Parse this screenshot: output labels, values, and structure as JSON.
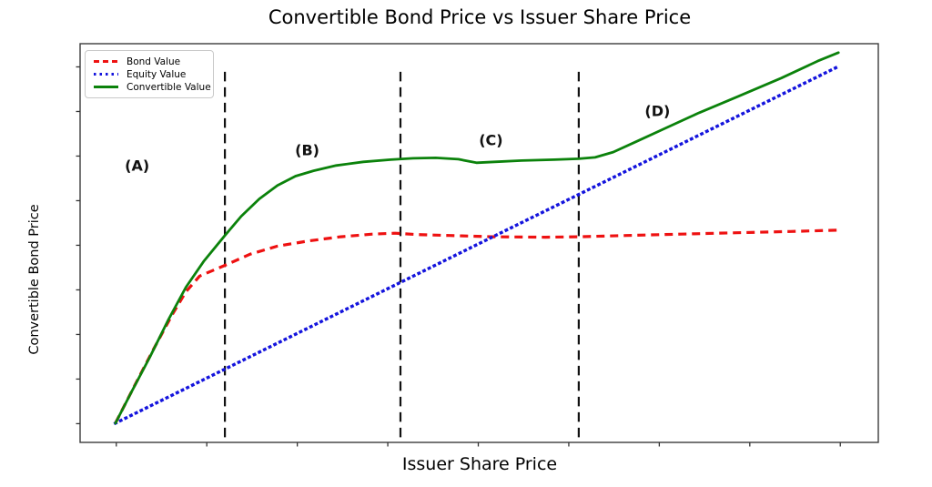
{
  "title": "Convertible Bond Price vs Issuer Share Price",
  "chart_data": {
    "type": "line",
    "title": "Convertible Bond Price vs Issuer Share Price",
    "xlabel": "Issuer Share Price",
    "ylabel": "Convertible Bond Price",
    "xlim": [
      0.6,
      9.42
    ],
    "ylim": [
      0.58,
      9.52
    ],
    "x_ticks": [
      1,
      2,
      3,
      4,
      5,
      6,
      7,
      8,
      9
    ],
    "y_ticks": [
      1,
      2,
      3,
      4,
      5,
      6,
      7,
      8,
      9
    ],
    "tick_labels_shown": false,
    "grid": false,
    "frame_color": "#3c3c3c",
    "legend_position": "upper-left",
    "boundary_lines": {
      "color": "#111111",
      "style": "dashed",
      "x_values": [
        2.2,
        4.14,
        6.11
      ],
      "y_span": [
        0.58,
        8.89
      ]
    },
    "region_labels": [
      {
        "text": "(A)",
        "x": 1.23,
        "y": 6.79
      },
      {
        "text": "(B)",
        "x": 3.11,
        "y": 7.14
      },
      {
        "text": "(C)",
        "x": 5.14,
        "y": 7.36
      },
      {
        "text": "(D)",
        "x": 6.98,
        "y": 8.01
      }
    ],
    "series": [
      {
        "name": "Bond Value",
        "color": "#ee1111",
        "style": "dashed",
        "points": [
          [
            0.99,
            1.01
          ],
          [
            1.22,
            1.92
          ],
          [
            1.42,
            2.7
          ],
          [
            1.62,
            3.45
          ],
          [
            1.77,
            3.96
          ],
          [
            1.92,
            4.31
          ],
          [
            2.2,
            4.55
          ],
          [
            2.48,
            4.8
          ],
          [
            2.78,
            4.98
          ],
          [
            3.13,
            5.1
          ],
          [
            3.48,
            5.19
          ],
          [
            3.83,
            5.25
          ],
          [
            4.08,
            5.27
          ],
          [
            4.33,
            5.24
          ],
          [
            4.68,
            5.22
          ],
          [
            5.16,
            5.19
          ],
          [
            5.74,
            5.18
          ],
          [
            6.11,
            5.19
          ],
          [
            6.64,
            5.22
          ],
          [
            7.24,
            5.25
          ],
          [
            7.85,
            5.28
          ],
          [
            8.45,
            5.31
          ],
          [
            8.98,
            5.34
          ]
        ]
      },
      {
        "name": "Equity Value",
        "color": "#1414dd",
        "style": "dotted",
        "points": [
          [
            0.99,
            1.01
          ],
          [
            4.98,
            5.01
          ],
          [
            8.98,
            9.01
          ]
        ]
      },
      {
        "name": "Convertible Value",
        "color": "#0b820b",
        "style": "solid",
        "points": [
          [
            0.99,
            1.01
          ],
          [
            1.17,
            1.72
          ],
          [
            1.37,
            2.49
          ],
          [
            1.57,
            3.31
          ],
          [
            1.77,
            4.06
          ],
          [
            1.97,
            4.65
          ],
          [
            2.2,
            5.22
          ],
          [
            2.38,
            5.65
          ],
          [
            2.58,
            6.04
          ],
          [
            2.78,
            6.34
          ],
          [
            2.98,
            6.55
          ],
          [
            3.18,
            6.67
          ],
          [
            3.43,
            6.79
          ],
          [
            3.73,
            6.87
          ],
          [
            4.03,
            6.92
          ],
          [
            4.28,
            6.95
          ],
          [
            4.53,
            6.96
          ],
          [
            4.78,
            6.93
          ],
          [
            4.98,
            6.85
          ],
          [
            5.18,
            6.87
          ],
          [
            5.48,
            6.9
          ],
          [
            5.84,
            6.92
          ],
          [
            6.11,
            6.94
          ],
          [
            6.29,
            6.97
          ],
          [
            6.49,
            7.09
          ],
          [
            6.74,
            7.32
          ],
          [
            7.04,
            7.6
          ],
          [
            7.44,
            7.97
          ],
          [
            7.85,
            8.32
          ],
          [
            8.35,
            8.75
          ],
          [
            8.75,
            9.13
          ],
          [
            8.98,
            9.32
          ]
        ]
      }
    ]
  }
}
